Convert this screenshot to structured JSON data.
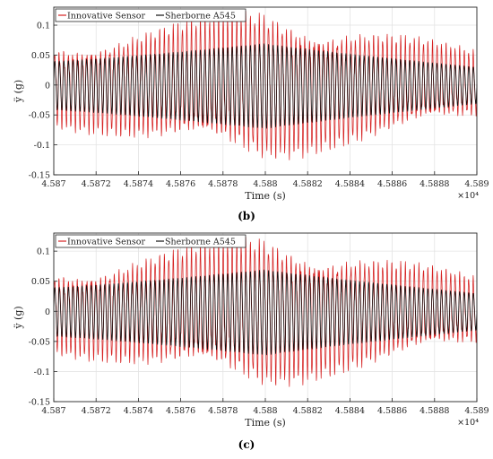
{
  "chart_data": [
    {
      "type": "line",
      "panel_label": "(b)",
      "xlabel": "Time (s)",
      "ylabel": "ÿ (g)",
      "x_multiplier": "×10⁴",
      "xlim": [
        4.587,
        4.589
      ],
      "ylim": [
        -0.15,
        0.13
      ],
      "xticks": [
        "4.587",
        "4.5872",
        "4.5874",
        "4.5876",
        "4.5878",
        "4.588",
        "4.5882",
        "4.5884",
        "4.5886",
        "4.5888",
        "4.589"
      ],
      "yticks": [
        "0.1",
        "0.05",
        "0",
        "-0.05",
        "-0.1",
        "-0.15"
      ],
      "ytick_values": [
        0.1,
        0.05,
        0,
        -0.05,
        -0.1,
        -0.15
      ],
      "grid": true,
      "legend_position": "top-left",
      "series": [
        {
          "name": "Innovative Sensor",
          "color": "#d62222",
          "envelope": {
            "start": 0.055,
            "peak": 0.1,
            "peak_x": 4.588,
            "end": 0.045
          }
        },
        {
          "name": "Sherborne A545",
          "color": "#111111",
          "envelope": {
            "start": 0.04,
            "peak": 0.07,
            "peak_x": 4.588,
            "end": 0.03
          }
        }
      ]
    },
    {
      "type": "line",
      "panel_label": "(c)",
      "xlabel": "Time (s)",
      "ylabel": "ÿ (g)",
      "x_multiplier": "×10⁴",
      "xlim": [
        4.587,
        4.589
      ],
      "ylim": [
        -0.15,
        0.13
      ],
      "xticks": [
        "4.587",
        "4.5872",
        "4.5874",
        "4.5876",
        "4.5878",
        "4.588",
        "4.5882",
        "4.5884",
        "4.5886",
        "4.5888",
        "4.589"
      ],
      "yticks": [
        "0.1",
        "0.05",
        "0",
        "-0.05",
        "-0.1",
        "-0.15"
      ],
      "ytick_values": [
        0.1,
        0.05,
        0,
        -0.05,
        -0.1,
        -0.15
      ],
      "grid": true,
      "legend_position": "top-left",
      "series": [
        {
          "name": "Innovative Sensor",
          "color": "#d62222",
          "envelope": {
            "start": 0.055,
            "peak": 0.1,
            "peak_x": 4.588,
            "end": 0.045
          }
        },
        {
          "name": "Sherborne A545",
          "color": "#111111",
          "envelope": {
            "start": 0.04,
            "peak": 0.07,
            "peak_x": 4.588,
            "end": 0.03
          }
        }
      ]
    }
  ]
}
